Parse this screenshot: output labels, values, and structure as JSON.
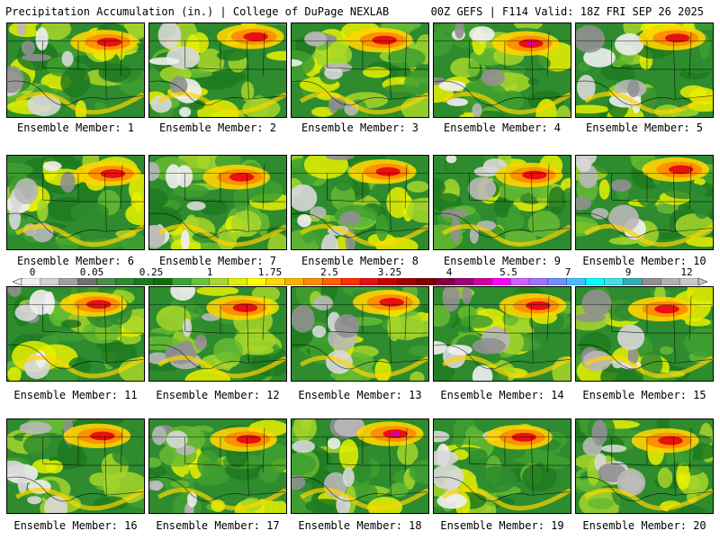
{
  "header": {
    "left": "Precipitation Accumulation (in.) | College of DuPage NEXLAB",
    "right": "00Z GEFS | F114 Valid: 18Z FRI SEP 26 2025"
  },
  "panels": [
    {
      "label": "Ensemble Member: 1"
    },
    {
      "label": "Ensemble Member: 2"
    },
    {
      "label": "Ensemble Member: 3"
    },
    {
      "label": "Ensemble Member: 4"
    },
    {
      "label": "Ensemble Member: 5"
    },
    {
      "label": "Ensemble Member: 6"
    },
    {
      "label": "Ensemble Member: 7"
    },
    {
      "label": "Ensemble Member: 8"
    },
    {
      "label": "Ensemble Member: 9"
    },
    {
      "label": "Ensemble Member: 10"
    },
    {
      "label": "Ensemble Member: 11"
    },
    {
      "label": "Ensemble Member: 12"
    },
    {
      "label": "Ensemble Member: 13"
    },
    {
      "label": "Ensemble Member: 14"
    },
    {
      "label": "Ensemble Member: 15"
    },
    {
      "label": "Ensemble Member: 16"
    },
    {
      "label": "Ensemble Member: 17"
    },
    {
      "label": "Ensemble Member: 18"
    },
    {
      "label": "Ensemble Member: 19"
    },
    {
      "label": "Ensemble Member: 20"
    }
  ],
  "colorbar": {
    "ticks": [
      "0",
      "0.05",
      "0.25",
      "1",
      "1.75",
      "2.5",
      "3.25",
      "4",
      "5.5",
      "7",
      "9",
      "12"
    ],
    "colors": [
      "#f0f0f0",
      "#d0d0d0",
      "#a0a0a0",
      "#707070",
      "#4c8c4c",
      "#2e8b2e",
      "#1e7a1e",
      "#107010",
      "#3aa33a",
      "#6cc23a",
      "#a8d82a",
      "#e0f000",
      "#ffff00",
      "#ffd800",
      "#ffb000",
      "#ff8c00",
      "#ff6000",
      "#ff3000",
      "#e81010",
      "#c80000",
      "#a00000",
      "#800000",
      "#800040",
      "#a00070",
      "#d000a0",
      "#ff00ff",
      "#d060ff",
      "#a070ff",
      "#7090ff",
      "#40c0ff",
      "#00ffff",
      "#40e0e0",
      "#30b0b0",
      "#909090",
      "#b0b0b0",
      "#c8c8c8"
    ]
  }
}
